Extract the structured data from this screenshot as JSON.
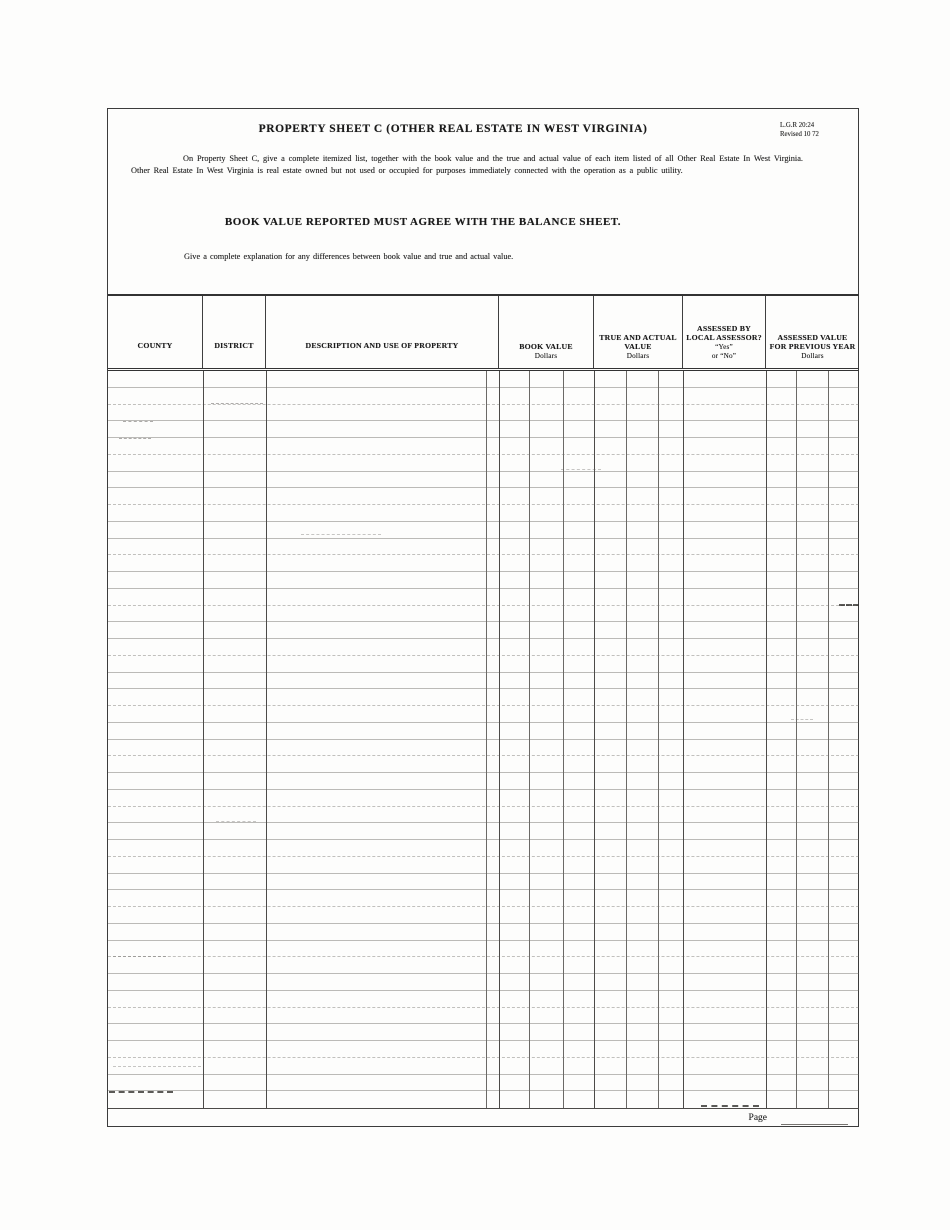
{
  "form": {
    "number": "L.G.R  20:24",
    "revised": "Revised 10 72",
    "title": "PROPERTY SHEET C (OTHER REAL ESTATE IN WEST VIRGINIA)",
    "instructions": "On Property Sheet C, give a complete itemized list, together with the book value and the true and actual value of each item listed of all Other Real Estate In West Virginia. Other Real Estate In West Virginia is real estate owned but not used or occupied for purposes immediately connected with the operation as a public utility.",
    "notice": "BOOK VALUE REPORTED MUST AGREE WITH THE BALANCE SHEET.",
    "explanation": "Give a complete explanation for any differences between book value and true and actual value.",
    "footer": {
      "page_label": "Page"
    }
  },
  "table": {
    "headers": {
      "county": "COUNTY",
      "district": "DISTRICT",
      "description": "DESCRIPTION AND USE OF PROPERTY",
      "book_value": "BOOK VALUE",
      "book_value_unit": "Dollars",
      "true_actual": "TRUE AND ACTUAL VALUE",
      "true_actual_unit": "Dollars",
      "assessed": "ASSESSED BY LOCAL ASSESSOR?",
      "assessed_yes": "“Yes”",
      "assessed_no": "or “No”",
      "previous": "ASSESSED VALUE FOR PREVIOUS YEAR",
      "previous_unit": "Dollars"
    },
    "row_count": 44,
    "rows": []
  }
}
